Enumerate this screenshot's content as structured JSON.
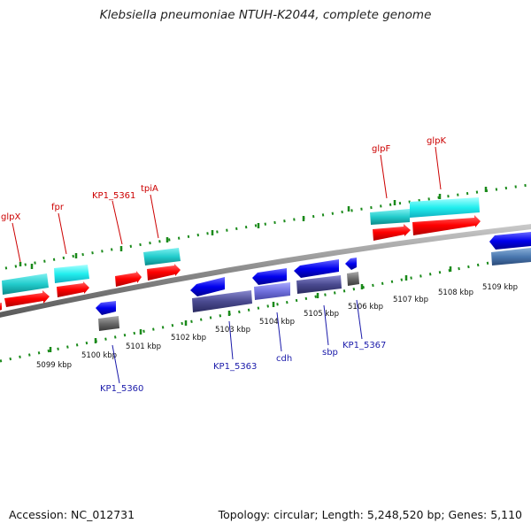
{
  "title": "Klebsiella pneumoniae NTUH-K2044, complete genome",
  "footer": {
    "accession": "Accession: NC_012731",
    "summary": "Topology: circular; Length: 5,248,520 bp; Genes: 5,110"
  },
  "colors": {
    "forward_gene": "#ff0000",
    "forward_cds": "#00cccc",
    "reverse_gene": "#0000ee",
    "reverse_cds": "#5050a0",
    "backbone": "#888888",
    "top_label": "#cc0000",
    "bottom_label": "#1a1aaa"
  },
  "scale_labels": [
    "5099 kbp",
    "5100 kbp",
    "5101 kbp",
    "5102 kbp",
    "5103 kbp",
    "5104 kbp",
    "5105 kbp",
    "5106 kbp",
    "5107 kbp",
    "5108 kbp",
    "5109 kbp"
  ],
  "top_labels": [
    "glpX",
    "fpr",
    "KP1_5361",
    "tpiA",
    "glpF",
    "glpK"
  ],
  "bottom_labels": [
    "KP1_5360",
    "KP1_5363",
    "cdh",
    "sbp",
    "KP1_5367"
  ]
}
